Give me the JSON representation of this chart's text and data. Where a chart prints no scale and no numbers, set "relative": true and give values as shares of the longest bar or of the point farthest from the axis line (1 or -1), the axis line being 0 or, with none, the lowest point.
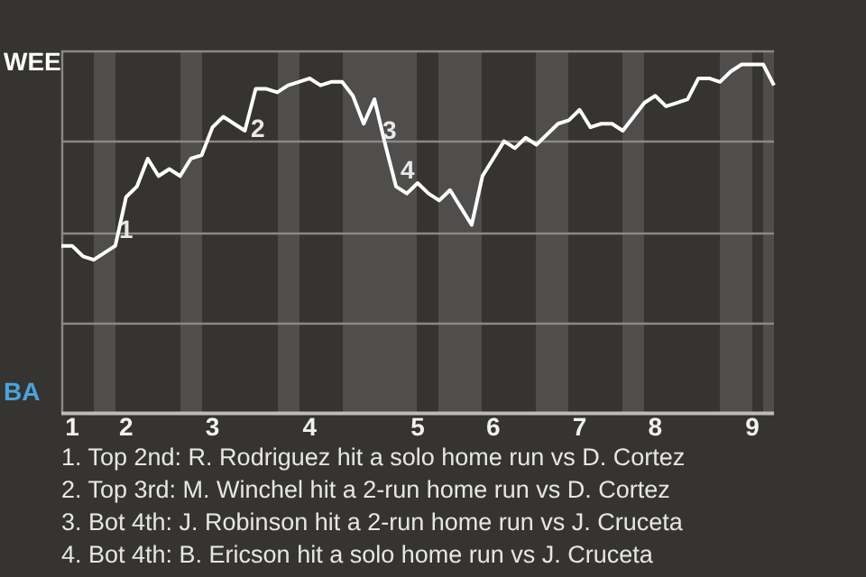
{
  "chart_data": {
    "type": "line",
    "relative": true,
    "grid": "y",
    "marker": "none",
    "categories": [
      null,
      "1",
      null,
      null,
      null,
      null,
      "2",
      null,
      null,
      null,
      null,
      null,
      null,
      null,
      "3",
      null,
      null,
      null,
      null,
      null,
      null,
      null,
      null,
      "4",
      null,
      null,
      null,
      null,
      null,
      null,
      null,
      null,
      null,
      "5",
      null,
      null,
      null,
      null,
      null,
      null,
      "6",
      null,
      null,
      null,
      null,
      null,
      null,
      null,
      "7",
      null,
      null,
      null,
      null,
      null,
      null,
      "8",
      null,
      null,
      null,
      null,
      null,
      null,
      null,
      null,
      "9",
      null,
      null
    ],
    "values": [
      0.48,
      0.48,
      0.45,
      0.44,
      0.46,
      0.48,
      0.62,
      0.65,
      0.73,
      0.68,
      0.7,
      0.68,
      0.73,
      0.74,
      0.82,
      0.85,
      0.83,
      0.81,
      0.93,
      0.93,
      0.92,
      0.94,
      0.95,
      0.96,
      0.94,
      0.95,
      0.95,
      0.91,
      0.83,
      0.9,
      0.77,
      0.65,
      0.63,
      0.66,
      0.63,
      0.61,
      0.64,
      0.59,
      0.54,
      0.68,
      0.73,
      0.78,
      0.76,
      0.79,
      0.77,
      0.8,
      0.83,
      0.84,
      0.87,
      0.82,
      0.83,
      0.83,
      0.81,
      0.85,
      0.89,
      0.91,
      0.88,
      0.89,
      0.9,
      0.96,
      0.96,
      0.95,
      0.98,
      1,
      1,
      1,
      0.94
    ],
    "color": "#ffffff",
    "annotations": [
      "WEE",
      "BA",
      "1",
      "2",
      "3",
      "4",
      "1. Top 2nd: R. Rodriguez hit a solo home run vs D. Cortez",
      "2. Top 3rd: M. Winchel hit a 2-run home run vs D. Cortez",
      "3. Bot 4th: J. Robinson hit a 2-run home run vs J. Cruceta",
      "4. Bot 4th: B. Ericson hit a solo home run vs J. Cruceta"
    ]
  }
}
